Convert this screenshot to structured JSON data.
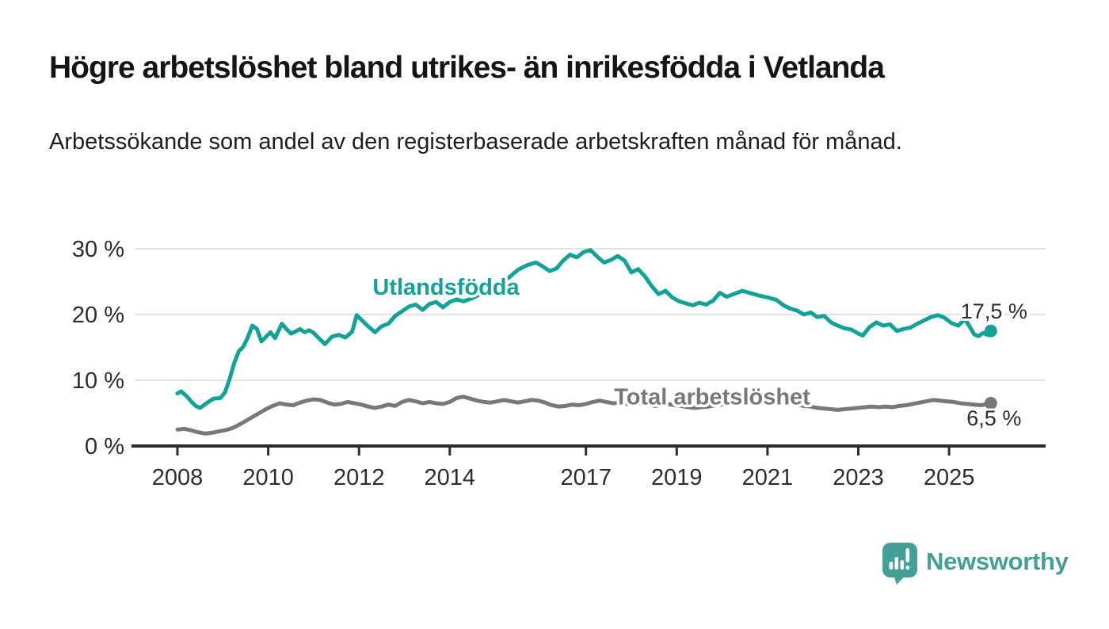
{
  "header": {
    "title": "Högre arbetslöshet bland utrikes- än inrikesfödda i Vetlanda",
    "subtitle": "Arbetssökande som andel av den registerbaserade arbetskraften månad för månad."
  },
  "colors": {
    "foreign_born_line": "#13A297",
    "total_line": "#77777C",
    "axis": "#2b2b2b",
    "grid": "#e3e3e3",
    "axis_text": "#2d2d2d",
    "end_label_text": "#2b2b2b",
    "brand_teal": "#43A097",
    "background": "#ffffff"
  },
  "chart_data": {
    "type": "line",
    "title": "Högre arbetslöshet bland utrikes- än inrikesfödda i Vetlanda",
    "subtitle": "Arbetssökande som andel av den registerbaserade arbetskraften månad för månad.",
    "grid": true,
    "x_axis": {
      "ticks": [
        2008,
        2010,
        2012,
        2014,
        2017,
        2019,
        2021,
        2023,
        2025
      ],
      "range": [
        2007.9,
        2026.3
      ]
    },
    "y_axis": {
      "ticks": [
        0,
        10,
        20,
        30
      ],
      "tick_labels": [
        "0 %",
        "10 %",
        "20 %",
        "30 %"
      ],
      "range": [
        0,
        33
      ],
      "unit": "%"
    },
    "series": [
      {
        "name": "Utlandsfödda",
        "color": "#13A297",
        "end_value": 17.5,
        "end_label": "17,5 %",
        "end_label_position": "above",
        "label_at": {
          "x": 2012.3,
          "y": 23.0
        },
        "points": [
          [
            2008.0,
            8.0
          ],
          [
            2008.08,
            8.3
          ],
          [
            2008.2,
            7.6
          ],
          [
            2008.3,
            6.8
          ],
          [
            2008.4,
            6.1
          ],
          [
            2008.5,
            5.8
          ],
          [
            2008.6,
            6.3
          ],
          [
            2008.7,
            6.8
          ],
          [
            2008.8,
            7.2
          ],
          [
            2008.95,
            7.3
          ],
          [
            2009.05,
            8.2
          ],
          [
            2009.15,
            10.2
          ],
          [
            2009.25,
            12.6
          ],
          [
            2009.35,
            14.4
          ],
          [
            2009.45,
            15.1
          ],
          [
            2009.55,
            16.5
          ],
          [
            2009.65,
            18.3
          ],
          [
            2009.75,
            17.8
          ],
          [
            2009.85,
            15.9
          ],
          [
            2009.95,
            16.6
          ],
          [
            2010.05,
            17.3
          ],
          [
            2010.15,
            16.4
          ],
          [
            2010.3,
            18.6
          ],
          [
            2010.4,
            17.8
          ],
          [
            2010.5,
            17.1
          ],
          [
            2010.6,
            17.4
          ],
          [
            2010.7,
            17.8
          ],
          [
            2010.8,
            17.3
          ],
          [
            2010.9,
            17.6
          ],
          [
            2011.0,
            17.2
          ],
          [
            2011.1,
            16.5
          ],
          [
            2011.25,
            15.5
          ],
          [
            2011.4,
            16.6
          ],
          [
            2011.55,
            16.9
          ],
          [
            2011.7,
            16.5
          ],
          [
            2011.85,
            17.4
          ],
          [
            2011.95,
            19.9
          ],
          [
            2012.05,
            19.2
          ],
          [
            2012.2,
            18.2
          ],
          [
            2012.35,
            17.3
          ],
          [
            2012.5,
            18.2
          ],
          [
            2012.65,
            18.6
          ],
          [
            2012.8,
            19.8
          ],
          [
            2012.95,
            20.5
          ],
          [
            2013.1,
            21.2
          ],
          [
            2013.25,
            21.5
          ],
          [
            2013.4,
            20.7
          ],
          [
            2013.55,
            21.6
          ],
          [
            2013.7,
            21.9
          ],
          [
            2013.85,
            21.1
          ],
          [
            2014.0,
            21.9
          ],
          [
            2014.15,
            22.3
          ],
          [
            2014.3,
            22.0
          ],
          [
            2014.5,
            22.5
          ],
          [
            2014.7,
            23.2
          ],
          [
            2014.9,
            24.2
          ],
          [
            2015.1,
            25.0
          ],
          [
            2015.3,
            25.6
          ],
          [
            2015.5,
            26.8
          ],
          [
            2015.7,
            27.5
          ],
          [
            2015.9,
            27.9
          ],
          [
            2016.05,
            27.3
          ],
          [
            2016.2,
            26.6
          ],
          [
            2016.35,
            27.0
          ],
          [
            2016.5,
            28.2
          ],
          [
            2016.65,
            29.1
          ],
          [
            2016.8,
            28.7
          ],
          [
            2016.95,
            29.5
          ],
          [
            2017.1,
            29.8
          ],
          [
            2017.25,
            28.8
          ],
          [
            2017.4,
            27.9
          ],
          [
            2017.55,
            28.3
          ],
          [
            2017.7,
            28.9
          ],
          [
            2017.85,
            28.2
          ],
          [
            2018.0,
            26.4
          ],
          [
            2018.15,
            26.9
          ],
          [
            2018.3,
            25.8
          ],
          [
            2018.45,
            24.3
          ],
          [
            2018.6,
            23.1
          ],
          [
            2018.75,
            23.6
          ],
          [
            2018.9,
            22.6
          ],
          [
            2019.05,
            22.0
          ],
          [
            2019.2,
            21.7
          ],
          [
            2019.35,
            21.4
          ],
          [
            2019.5,
            21.8
          ],
          [
            2019.65,
            21.5
          ],
          [
            2019.8,
            22.1
          ],
          [
            2019.95,
            23.3
          ],
          [
            2020.1,
            22.7
          ],
          [
            2020.25,
            23.1
          ],
          [
            2020.45,
            23.6
          ],
          [
            2020.6,
            23.3
          ],
          [
            2020.8,
            22.9
          ],
          [
            2021.0,
            22.6
          ],
          [
            2021.2,
            22.2
          ],
          [
            2021.35,
            21.4
          ],
          [
            2021.5,
            20.9
          ],
          [
            2021.65,
            20.6
          ],
          [
            2021.8,
            20.0
          ],
          [
            2021.95,
            20.3
          ],
          [
            2022.1,
            19.6
          ],
          [
            2022.25,
            19.8
          ],
          [
            2022.4,
            18.8
          ],
          [
            2022.55,
            18.3
          ],
          [
            2022.7,
            17.9
          ],
          [
            2022.85,
            17.7
          ],
          [
            2023.0,
            17.1
          ],
          [
            2023.1,
            16.8
          ],
          [
            2023.25,
            18.1
          ],
          [
            2023.4,
            18.8
          ],
          [
            2023.55,
            18.3
          ],
          [
            2023.7,
            18.5
          ],
          [
            2023.85,
            17.5
          ],
          [
            2024.0,
            17.8
          ],
          [
            2024.15,
            18.0
          ],
          [
            2024.3,
            18.6
          ],
          [
            2024.45,
            19.1
          ],
          [
            2024.6,
            19.6
          ],
          [
            2024.75,
            19.9
          ],
          [
            2024.9,
            19.5
          ],
          [
            2025.05,
            18.7
          ],
          [
            2025.2,
            18.3
          ],
          [
            2025.35,
            19.3
          ],
          [
            2025.45,
            18.2
          ],
          [
            2025.55,
            17.0
          ],
          [
            2025.65,
            16.7
          ],
          [
            2025.75,
            17.2
          ],
          [
            2025.85,
            16.9
          ],
          [
            2025.92,
            17.5
          ]
        ]
      },
      {
        "name": "Total arbetslöshet",
        "color": "#77777C",
        "end_value": 6.5,
        "end_label": "6,5 %",
        "end_label_position": "below",
        "label_at": {
          "x": 2017.62,
          "y": 6.3
        },
        "points": [
          [
            2008.0,
            2.5
          ],
          [
            2008.15,
            2.6
          ],
          [
            2008.3,
            2.4
          ],
          [
            2008.45,
            2.1
          ],
          [
            2008.6,
            1.9
          ],
          [
            2008.75,
            2.0
          ],
          [
            2008.9,
            2.2
          ],
          [
            2009.05,
            2.4
          ],
          [
            2009.2,
            2.7
          ],
          [
            2009.35,
            3.2
          ],
          [
            2009.5,
            3.8
          ],
          [
            2009.65,
            4.4
          ],
          [
            2009.8,
            5.0
          ],
          [
            2009.95,
            5.6
          ],
          [
            2010.1,
            6.1
          ],
          [
            2010.25,
            6.5
          ],
          [
            2010.4,
            6.3
          ],
          [
            2010.55,
            6.2
          ],
          [
            2010.7,
            6.6
          ],
          [
            2010.85,
            6.9
          ],
          [
            2011.0,
            7.1
          ],
          [
            2011.15,
            7.0
          ],
          [
            2011.3,
            6.6
          ],
          [
            2011.45,
            6.3
          ],
          [
            2011.6,
            6.4
          ],
          [
            2011.75,
            6.7
          ],
          [
            2011.9,
            6.5
          ],
          [
            2012.05,
            6.3
          ],
          [
            2012.2,
            6.0
          ],
          [
            2012.35,
            5.8
          ],
          [
            2012.5,
            6.0
          ],
          [
            2012.65,
            6.3
          ],
          [
            2012.8,
            6.1
          ],
          [
            2012.95,
            6.7
          ],
          [
            2013.1,
            7.0
          ],
          [
            2013.25,
            6.8
          ],
          [
            2013.4,
            6.5
          ],
          [
            2013.55,
            6.7
          ],
          [
            2013.7,
            6.5
          ],
          [
            2013.85,
            6.4
          ],
          [
            2014.0,
            6.7
          ],
          [
            2014.15,
            7.3
          ],
          [
            2014.3,
            7.5
          ],
          [
            2014.45,
            7.2
          ],
          [
            2014.6,
            6.9
          ],
          [
            2014.75,
            6.7
          ],
          [
            2014.9,
            6.6
          ],
          [
            2015.05,
            6.8
          ],
          [
            2015.2,
            7.0
          ],
          [
            2015.35,
            6.8
          ],
          [
            2015.5,
            6.6
          ],
          [
            2015.65,
            6.8
          ],
          [
            2015.8,
            7.0
          ],
          [
            2015.95,
            6.9
          ],
          [
            2016.1,
            6.6
          ],
          [
            2016.25,
            6.2
          ],
          [
            2016.4,
            6.0
          ],
          [
            2016.55,
            6.1
          ],
          [
            2016.7,
            6.3
          ],
          [
            2016.85,
            6.2
          ],
          [
            2017.0,
            6.4
          ],
          [
            2017.15,
            6.7
          ],
          [
            2017.3,
            6.9
          ],
          [
            2017.45,
            6.7
          ],
          [
            2017.6,
            6.5
          ],
          [
            2017.75,
            6.6
          ],
          [
            2017.9,
            6.4
          ],
          [
            2018.05,
            6.3
          ],
          [
            2018.2,
            6.5
          ],
          [
            2018.35,
            6.3
          ],
          [
            2018.5,
            6.1
          ],
          [
            2018.65,
            6.2
          ],
          [
            2018.8,
            6.4
          ],
          [
            2018.95,
            6.2
          ],
          [
            2019.1,
            6.1
          ],
          [
            2019.25,
            5.9
          ],
          [
            2019.4,
            5.8
          ],
          [
            2019.55,
            5.9
          ],
          [
            2019.7,
            6.0
          ],
          [
            2019.85,
            6.2
          ],
          [
            2020.0,
            6.3
          ],
          [
            2020.15,
            6.8
          ],
          [
            2020.3,
            7.2
          ],
          [
            2020.45,
            7.4
          ],
          [
            2020.6,
            7.2
          ],
          [
            2020.75,
            7.1
          ],
          [
            2020.9,
            7.0
          ],
          [
            2021.05,
            7.1
          ],
          [
            2021.2,
            6.9
          ],
          [
            2021.35,
            6.7
          ],
          [
            2021.5,
            6.5
          ],
          [
            2021.65,
            6.3
          ],
          [
            2021.8,
            6.1
          ],
          [
            2021.95,
            6.0
          ],
          [
            2022.1,
            5.8
          ],
          [
            2022.25,
            5.7
          ],
          [
            2022.4,
            5.6
          ],
          [
            2022.55,
            5.5
          ],
          [
            2022.7,
            5.6
          ],
          [
            2022.85,
            5.7
          ],
          [
            2023.0,
            5.8
          ],
          [
            2023.15,
            5.9
          ],
          [
            2023.3,
            6.0
          ],
          [
            2023.45,
            5.9
          ],
          [
            2023.6,
            6.0
          ],
          [
            2023.75,
            5.9
          ],
          [
            2023.9,
            6.1
          ],
          [
            2024.05,
            6.2
          ],
          [
            2024.2,
            6.4
          ],
          [
            2024.35,
            6.6
          ],
          [
            2024.5,
            6.8
          ],
          [
            2024.65,
            7.0
          ],
          [
            2024.8,
            6.9
          ],
          [
            2024.95,
            6.8
          ],
          [
            2025.1,
            6.7
          ],
          [
            2025.25,
            6.5
          ],
          [
            2025.4,
            6.4
          ],
          [
            2025.55,
            6.3
          ],
          [
            2025.7,
            6.2
          ],
          [
            2025.85,
            6.4
          ],
          [
            2025.92,
            6.5
          ]
        ]
      }
    ]
  },
  "footer": {
    "brand": "Newsworthy"
  }
}
